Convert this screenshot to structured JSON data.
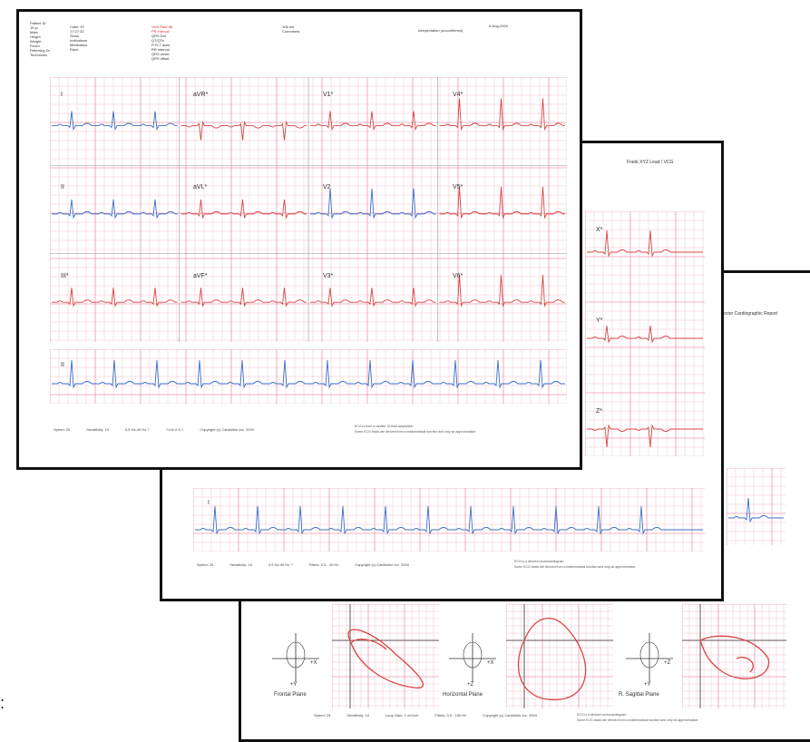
{
  "ecg12": {
    "date": "6-Aug-2004",
    "interpretation": "Interpretation (unconfirmed)",
    "header_col1": [
      "Patient ID",
      "15 yr",
      "Male",
      "Height",
      "Weight",
      "Room",
      "Referring Dr.",
      "Technician"
    ],
    "header_col2": [
      "Case: 57",
      "17:27:32",
      "Sinus",
      "Indications",
      "Medication",
      "Race"
    ],
    "header_col3_red": [
      "Vent Rate 88",
      "PR interval"
    ],
    "header_col3": [
      "QRS Dur",
      "QT/QTc",
      "P-R-T axes",
      "RR interval",
      "QRS onset",
      "QRS offset"
    ],
    "header_col4": [
      "106 ms",
      "Comments"
    ],
    "leads": [
      "I",
      "aVR*",
      "V1*",
      "V4*",
      "II",
      "aVL*",
      "V2",
      "V5*",
      "III*",
      "aVF*",
      "V3*",
      "V6*"
    ],
    "rhythm_lead": "II",
    "footer": [
      "Speed: 25",
      "Sensitivity: 10",
      "0.5 Hz-40 Hz ?",
      "?=Hz 0.5-?",
      "Copyright (c) Cardioline Inc. 2004"
    ],
    "notes": [
      "ECG is from a cardiac 12-lead acquisition",
      "Some ECG leads are derived from a mathematical function and only an approximation"
    ]
  },
  "xyz": {
    "title": "Frank XYZ Lead / VCG",
    "leads": [
      "X*",
      "Y*",
      "Z*"
    ],
    "rhythm_lead": "I",
    "footer": [
      "Speed: 25",
      "Sensitivity: 10",
      "0.5 Hz-40 Hz ?",
      "Filters: 0.5 - 40 Hz",
      "Copyright (c) Cardioline Inc. 2004"
    ],
    "notes": [
      "ECG is a derived vectorcardiogram",
      "Some ECG leads are derived from a mathematical function and only an approximation"
    ]
  },
  "vcg": {
    "title": "Vector Cardiographic Report",
    "planes": [
      "Frontal Plane",
      "Horizontal Plane",
      "R. Sagittal Plane"
    ],
    "axis_labels": {
      "frontal_x": "+X",
      "frontal_y": "+Y",
      "horiz_x": "+X",
      "horiz_z": "+Z",
      "sag_z": "+Z",
      "sag_y": "+Y"
    },
    "footer": [
      "Speed: 25",
      "Sensitivity: 10",
      "Loop Gain: 1 mV/cm",
      "Filters: 0.5 - 150 Hz",
      "Copyright (c) Cardioline Inc. 2004"
    ],
    "notes": [
      "ECG is a derived vectorcardiogram",
      "Some ECG leads are derived from a mathematical function and only an approximation"
    ]
  },
  "colors": {
    "grid": "#f2b3c2",
    "grid_major": "#e58aa3",
    "trace_red": "#d84545",
    "trace_blue": "#3a6fc9"
  }
}
